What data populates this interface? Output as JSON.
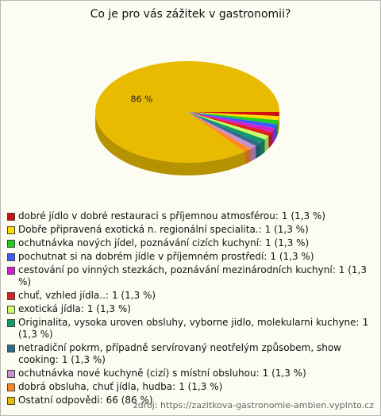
{
  "chart_data": {
    "type": "pie",
    "title": "Co je pro vás zážitek v gastronomii?",
    "categories": [
      "dobré jídlo v dobré restauraci s příjemnou atmosférou:",
      "Dobře připravená exotická n. regionální specialita.:",
      "ochutnávka nových jídel, poznávání cizích kuchyní:",
      "pochutnat si na dobrém jídle v příjemném prostředí:",
      "cestování po vinných stezkách, poznávání mezinárodních kuchyní:",
      "chuť, vzhled jídla..:",
      "exotická jídla:",
      "Originalita, vysoka uroven obsluhy, vyborne jidlo, molekularni kuchyne:",
      "netradiční pokrm, případně servírovaný neotřelým způsobem, show cooking:",
      "ochutnávka nové kuchyně (cizí) s místní obsluhou:",
      "dobrá obsluha, chuť jídla, hudba:",
      "Ostatní odpovědi:"
    ],
    "values": [
      1,
      1,
      1,
      1,
      1,
      1,
      1,
      1,
      1,
      1,
      1,
      66
    ],
    "value_labels": [
      "1 (1,3 %)",
      "1 (1,3 %)",
      "1 (1,3 %)",
      "1 (1,3 %)",
      "1 (1,3 %)",
      "1 (1,3 %)",
      "1 (1,3 %)",
      "1 (1,3 %)",
      "1 (1,3 %)",
      "1 (1,3 %)",
      "1 (1,3 %)",
      "66 (86 %)"
    ],
    "colors": [
      "#d01010",
      "#ffdd00",
      "#22cc22",
      "#3a5cff",
      "#d020d0",
      "#e02020",
      "#ccff66",
      "#119966",
      "#2a6f8a",
      "#c890d0",
      "#ff8822",
      "#e8bb00"
    ],
    "pie_label": "86 %",
    "source": "zdroj: https://zazitkova-gastronomie-ambien.vyplnto.cz"
  }
}
